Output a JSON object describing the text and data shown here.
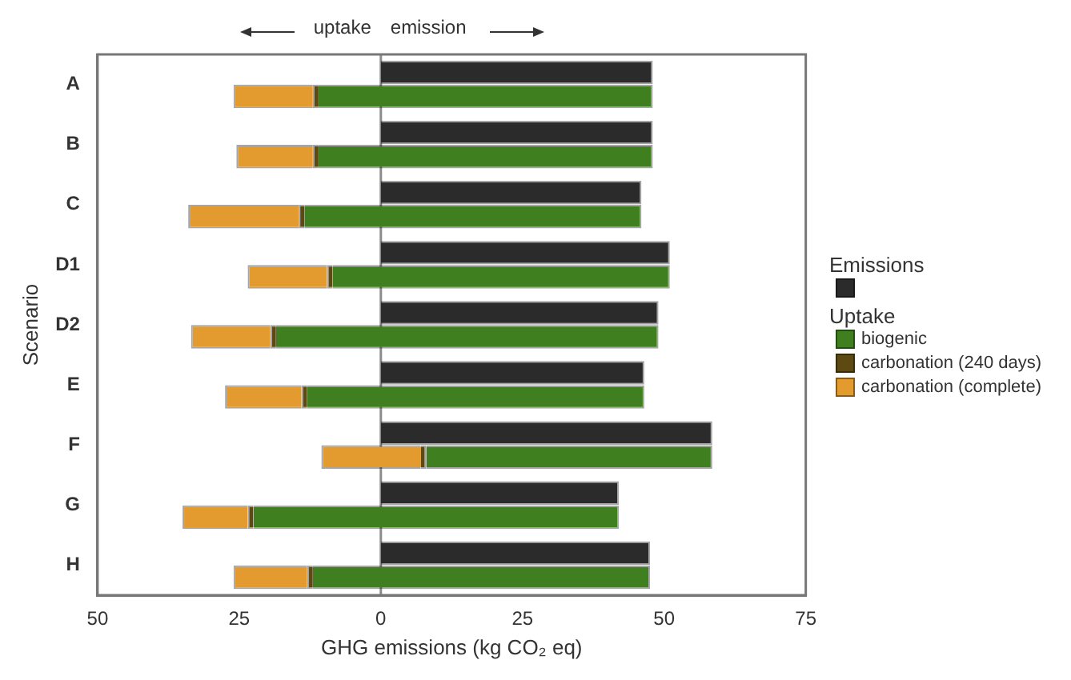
{
  "chart_data": {
    "type": "bar",
    "orientation": "horizontal",
    "categories": [
      "A",
      "B",
      "C",
      "D1",
      "D2",
      "E",
      "F",
      "G",
      "H"
    ],
    "xlabel": "GHG emissions (kg CO₂ eq)",
    "ylabel": "Scenario",
    "legend_title": "Uptake",
    "legend": "right",
    "annotations": [
      "uptake",
      "emission"
    ],
    "xlim": [
      -50,
      75
    ],
    "xticks": [
      {
        "value": -50,
        "label": "50"
      },
      {
        "value": -25,
        "label": "25"
      },
      0,
      25,
      50,
      75
    ],
    "grid": false,
    "ref_lines": [
      {
        "axis": "x",
        "value": 0,
        "color": "#8c8c8c"
      }
    ],
    "series": [
      {
        "name": "Emissions",
        "color": "#2b2b2b",
        "base": [
          0,
          0,
          0,
          0,
          0,
          0,
          0,
          0,
          0
        ],
        "values": [
          48,
          48,
          46,
          51,
          49,
          46.5,
          58.5,
          42,
          47.5
        ]
      },
      {
        "name": "biogenic",
        "color": "#3f7f1f",
        "base": [
          48,
          48,
          46,
          51,
          49,
          46.5,
          58.5,
          42,
          47.5
        ],
        "values": [
          -59,
          -59,
          -59.5,
          -59.5,
          -67.5,
          -59.5,
          -50.5,
          -64.5,
          -59.5
        ]
      },
      {
        "name": "carbonation (240 days)",
        "color": "#5c4a12",
        "base": [
          -11,
          -11,
          -13.5,
          -8.5,
          -18.5,
          -13,
          8,
          -22.5,
          -12
        ],
        "values": [
          -1,
          -1,
          -1,
          -1,
          -1,
          -1,
          -1,
          -1,
          -1
        ]
      },
      {
        "name": "carbonation (complete)",
        "color": "#e39a2e",
        "base": [
          -12,
          -12,
          -14.5,
          -9.5,
          -19.5,
          -14,
          7,
          -23.5,
          -13
        ],
        "values": [
          -14,
          -13.5,
          -19.5,
          -14,
          -14,
          -13.5,
          -17.5,
          -11.5,
          -13
        ]
      }
    ]
  }
}
